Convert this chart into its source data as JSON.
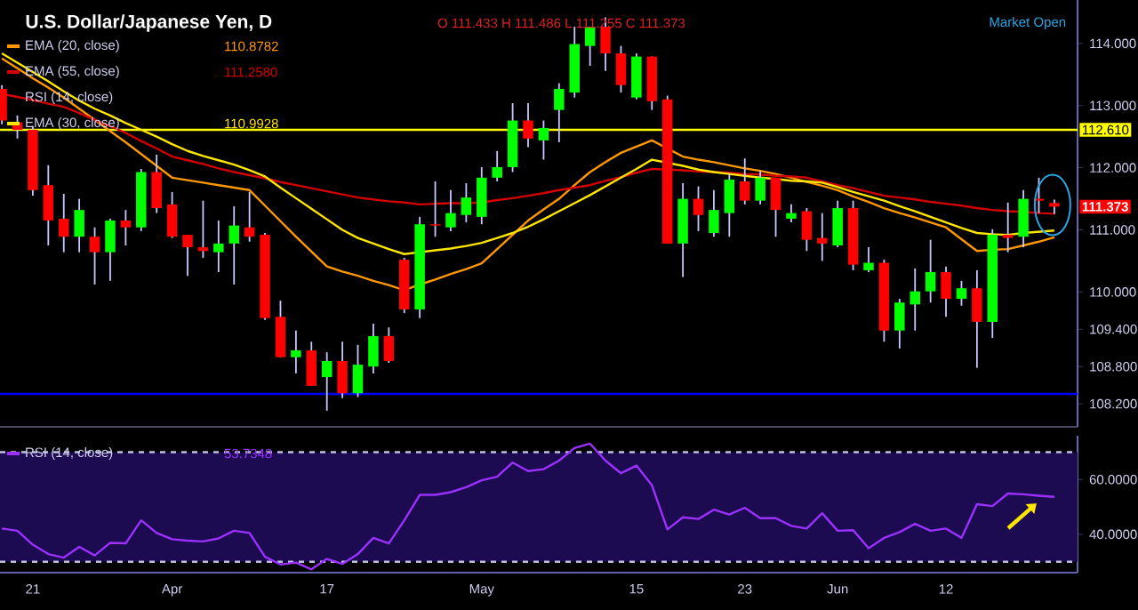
{
  "chart_data": [
    {
      "type": "candlestick",
      "title": "U.S. Dollar/Japanese Yen, D",
      "ohlc": [
        [
          113.27,
          113.33,
          112.7,
          112.76
        ],
        [
          112.73,
          112.84,
          112.47,
          112.61
        ],
        [
          112.61,
          112.67,
          111.55,
          111.64
        ],
        [
          111.72,
          112.04,
          110.75,
          111.15
        ],
        [
          111.18,
          111.58,
          110.64,
          110.89
        ],
        [
          110.89,
          111.5,
          110.64,
          111.32
        ],
        [
          110.89,
          111.04,
          110.12,
          110.64
        ],
        [
          110.64,
          111.18,
          110.18,
          111.15
        ],
        [
          111.15,
          111.32,
          110.75,
          111.04
        ],
        [
          111.04,
          111.98,
          110.98,
          111.93
        ],
        [
          111.93,
          112.21,
          111.27,
          111.35
        ],
        [
          111.41,
          111.61,
          110.87,
          110.89
        ],
        [
          110.92,
          110.92,
          110.26,
          110.72
        ],
        [
          110.72,
          111.47,
          110.55,
          110.66
        ],
        [
          110.64,
          111.15,
          110.32,
          110.78
        ],
        [
          110.78,
          111.38,
          110.12,
          111.07
        ],
        [
          111.04,
          111.61,
          110.81,
          110.89
        ],
        [
          110.92,
          110.95,
          109.55,
          109.58
        ],
        [
          109.6,
          109.86,
          108.95,
          108.95
        ],
        [
          108.95,
          109.38,
          108.69,
          109.06
        ],
        [
          109.06,
          109.2,
          108.49,
          108.49
        ],
        [
          108.63,
          109.03,
          108.09,
          108.89
        ],
        [
          108.89,
          109.2,
          108.29,
          108.37
        ],
        [
          108.37,
          109.15,
          108.31,
          108.83
        ],
        [
          108.8,
          109.49,
          108.69,
          109.29
        ],
        [
          109.29,
          109.43,
          108.86,
          108.89
        ],
        [
          110.52,
          110.55,
          109.66,
          109.72
        ],
        [
          109.72,
          111.21,
          109.58,
          111.09
        ],
        [
          111.09,
          111.78,
          110.89,
          111.07
        ],
        [
          111.04,
          111.64,
          110.98,
          111.27
        ],
        [
          111.24,
          111.75,
          111.12,
          111.52
        ],
        [
          111.21,
          112.01,
          111.09,
          111.84
        ],
        [
          111.84,
          112.27,
          111.78,
          112.01
        ],
        [
          112.01,
          113.04,
          111.93,
          112.76
        ],
        [
          112.76,
          113.04,
          112.33,
          112.47
        ],
        [
          112.44,
          112.76,
          112.13,
          112.64
        ],
        [
          112.93,
          113.36,
          112.41,
          113.27
        ],
        [
          113.21,
          114.27,
          113.13,
          113.99
        ],
        [
          113.96,
          114.27,
          113.64,
          114.27
        ],
        [
          114.27,
          114.42,
          113.56,
          113.84
        ],
        [
          113.84,
          113.96,
          113.21,
          113.33
        ],
        [
          113.13,
          113.84,
          113.1,
          113.79
        ],
        [
          113.79,
          113.79,
          112.93,
          113.07
        ],
        [
          113.1,
          113.16,
          110.78,
          110.78
        ],
        [
          110.78,
          111.75,
          110.24,
          111.5
        ],
        [
          111.5,
          111.7,
          110.98,
          111.24
        ],
        [
          110.95,
          111.64,
          110.89,
          111.32
        ],
        [
          111.27,
          111.9,
          110.89,
          111.81
        ],
        [
          111.78,
          112.15,
          111.41,
          111.47
        ],
        [
          111.47,
          111.95,
          111.41,
          111.84
        ],
        [
          111.84,
          111.84,
          110.89,
          111.32
        ],
        [
          111.18,
          111.41,
          111.12,
          111.27
        ],
        [
          111.3,
          111.35,
          110.66,
          110.84
        ],
        [
          110.87,
          111.27,
          110.5,
          110.78
        ],
        [
          110.75,
          111.47,
          110.72,
          111.35
        ],
        [
          111.35,
          111.47,
          110.35,
          110.44
        ],
        [
          110.35,
          110.72,
          110.32,
          110.47
        ],
        [
          110.47,
          110.52,
          109.2,
          109.38
        ],
        [
          109.38,
          109.89,
          109.09,
          109.83
        ],
        [
          109.8,
          110.38,
          109.38,
          110.01
        ],
        [
          110.01,
          110.84,
          109.83,
          110.32
        ],
        [
          110.32,
          110.41,
          109.6,
          109.89
        ],
        [
          109.89,
          110.18,
          109.78,
          110.06
        ],
        [
          110.06,
          110.35,
          108.78,
          109.52
        ],
        [
          109.52,
          111.01,
          109.26,
          110.92
        ],
        [
          110.92,
          111.44,
          110.64,
          110.87
        ],
        [
          110.89,
          111.64,
          110.72,
          111.5
        ],
        [
          111.5,
          111.84,
          111.27,
          111.47
        ],
        [
          111.433,
          111.486,
          111.255,
          111.373
        ]
      ],
      "series": [
        {
          "name": "EMA (20, close)",
          "type": "line",
          "color": "#ff9800",
          "values": [
            113.76,
            113.6,
            113.44,
            113.29,
            113.13,
            112.95,
            112.77,
            112.59,
            112.41,
            112.22,
            112.03,
            111.84,
            111.8,
            111.76,
            111.72,
            111.68,
            111.64,
            111.39,
            111.14,
            110.89,
            110.65,
            110.41,
            110.33,
            110.26,
            110.18,
            110.11,
            110.03,
            110.12,
            110.2,
            110.29,
            110.37,
            110.46,
            110.69,
            110.92,
            111.15,
            111.33,
            111.5,
            111.72,
            111.93,
            112.09,
            112.24,
            112.34,
            112.44,
            112.31,
            112.18,
            112.13,
            112.09,
            112.04,
            111.99,
            111.95,
            111.9,
            111.84,
            111.77,
            111.71,
            111.64,
            111.54,
            111.45,
            111.35,
            111.27,
            111.2,
            111.12,
            111.04,
            110.85,
            110.66,
            110.68,
            110.69,
            110.75,
            110.81,
            110.88
          ]
        },
        {
          "name": "EMA (55, close)",
          "type": "line",
          "color": "#d40000",
          "values": [
            113.19,
            113.14,
            113.09,
            113.03,
            112.98,
            112.88,
            112.77,
            112.67,
            112.56,
            112.43,
            112.31,
            112.18,
            112.12,
            112.06,
            111.99,
            111.93,
            111.88,
            111.83,
            111.77,
            111.72,
            111.67,
            111.62,
            111.57,
            111.52,
            111.49,
            111.46,
            111.44,
            111.41,
            111.42,
            111.43,
            111.43,
            111.44,
            111.48,
            111.51,
            111.55,
            111.59,
            111.64,
            111.68,
            111.72,
            111.79,
            111.85,
            111.92,
            111.98,
            111.97,
            111.96,
            111.94,
            111.93,
            111.92,
            111.9,
            111.89,
            111.87,
            111.86,
            111.84,
            111.78,
            111.72,
            111.67,
            111.61,
            111.55,
            111.52,
            111.49,
            111.45,
            111.42,
            111.39,
            111.35,
            111.32,
            111.3,
            111.29,
            111.27,
            111.26
          ]
        },
        {
          "name": "EMA (30, close)",
          "type": "line",
          "color": "#ffe600",
          "values": [
            113.84,
            113.69,
            113.54,
            113.39,
            113.23,
            113.08,
            112.95,
            112.84,
            112.72,
            112.61,
            112.5,
            112.38,
            112.27,
            112.19,
            112.12,
            112.05,
            111.96,
            111.86,
            111.68,
            111.51,
            111.34,
            111.17,
            111.0,
            110.87,
            110.78,
            110.69,
            110.61,
            110.64,
            110.67,
            110.7,
            110.74,
            110.79,
            110.87,
            110.95,
            111.05,
            111.17,
            111.3,
            111.43,
            111.56,
            111.7,
            111.84,
            111.98,
            112.13,
            112.08,
            112.03,
            111.97,
            111.93,
            111.9,
            111.87,
            111.84,
            111.82,
            111.79,
            111.78,
            111.76,
            111.69,
            111.61,
            111.54,
            111.47,
            111.38,
            111.3,
            111.21,
            111.12,
            111.03,
            110.95,
            110.93,
            110.92,
            110.95,
            110.97,
            110.99
          ]
        }
      ],
      "ylim": [
        107.83,
        114.7
      ],
      "yticks": [
        {
          "value": 108.2,
          "label": "108.200"
        },
        {
          "value": 108.8,
          "label": "108.800"
        },
        {
          "value": 109.4,
          "label": "109.400"
        },
        {
          "value": 110,
          "label": "110.000"
        },
        {
          "value": 111,
          "label": "111.000"
        },
        {
          "value": 112,
          "label": "112.000"
        },
        {
          "value": 113,
          "label": "113.000"
        },
        {
          "value": 114,
          "label": "114.000"
        }
      ],
      "ref_lines": [
        {
          "axis": "y",
          "value": 112.61,
          "label": "112.610",
          "color": "#ffff00"
        },
        {
          "axis": "y",
          "value": 108.36,
          "color": "#0000ff"
        }
      ],
      "annotations": [
        "O 111.433 H 111.486 L 111.255 C 111.373",
        "Market Open",
        "RSI (14, close)",
        "110.8782",
        "111.2580",
        "110.9928",
        "111.373"
      ],
      "legend": "top left",
      "tick_labels": "y"
    },
    {
      "type": "line",
      "categories": [
        null,
        null,
        "21",
        null,
        null,
        null,
        null,
        null,
        null,
        null,
        null,
        "Apr",
        null,
        null,
        null,
        null,
        null,
        null,
        null,
        null,
        null,
        "17",
        null,
        null,
        null,
        null,
        null,
        null,
        null,
        null,
        null,
        "May",
        null,
        null,
        null,
        null,
        null,
        null,
        null,
        null,
        null,
        "15",
        null,
        null,
        null,
        null,
        null,
        null,
        "23",
        null,
        null,
        null,
        null,
        null,
        "Jun",
        null,
        null,
        null,
        null,
        null,
        null,
        "12",
        null,
        null,
        null,
        null,
        null,
        null,
        null
      ],
      "series": [
        {
          "name": "RSI (14, close)",
          "color": "#9b30ff",
          "values": [
            42.1,
            41.3,
            36.2,
            32.8,
            31.5,
            35.4,
            32.3,
            36.9,
            36.7,
            45.1,
            40.5,
            38.2,
            37.7,
            37.4,
            38.5,
            41.3,
            40.5,
            31.8,
            29.0,
            29.7,
            27.2,
            31.0,
            29.2,
            32.8,
            38.7,
            36.7,
            45.1,
            54.4,
            54.4,
            55.4,
            57.2,
            59.7,
            61.0,
            66.2,
            63.1,
            63.8,
            66.9,
            71.5,
            73.1,
            66.9,
            62.3,
            65.1,
            57.9,
            41.8,
            46.2,
            45.6,
            49.0,
            47.2,
            49.7,
            45.9,
            45.9,
            43.1,
            42.1,
            47.7,
            41.3,
            41.5,
            34.9,
            38.7,
            40.8,
            43.8,
            41.3,
            42.1,
            38.7,
            51.0,
            50.3,
            54.9,
            54.6,
            54.1,
            53.7
          ]
        }
      ],
      "ylim": [
        26,
        76
      ],
      "yticks": [
        {
          "value": 40,
          "label": "40.0000"
        },
        {
          "value": 60,
          "label": "60.0000"
        }
      ],
      "ref_lines": [
        {
          "axis": "y",
          "value": 70,
          "color": "#c0c0e0",
          "line_style": "dashed"
        },
        {
          "axis": "y",
          "value": 30,
          "color": "#c0c0e0",
          "line_style": "dashed"
        }
      ],
      "bands": [
        {
          "axis": "y",
          "from": 30,
          "to": 70,
          "color": "#1c0b50"
        }
      ],
      "annotations": [
        "53.7348"
      ],
      "legend": "top left"
    }
  ]
}
